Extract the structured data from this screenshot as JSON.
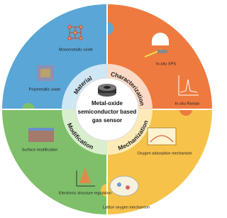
{
  "center": {
    "lines": [
      "Metal-oxide",
      "semiconductor based",
      "gas sensor"
    ]
  },
  "sections": [
    {
      "label": "Material",
      "items": [
        "Monometallic oxide",
        "Polymetallic oxide"
      ]
    },
    {
      "label": "Characterization",
      "items": [
        "In-situ XPS",
        "In-situ Raman"
      ]
    },
    {
      "label": "Mechanization",
      "items": [
        "Oxygen adsorption mechanism",
        "Lattice oxygen mechanism"
      ]
    },
    {
      "label": "Modification",
      "items": [
        "Surface modification",
        "Electronic structure regulation"
      ]
    }
  ]
}
